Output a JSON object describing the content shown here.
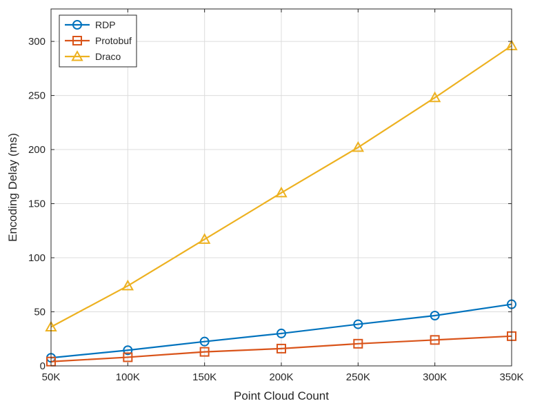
{
  "chart_data": {
    "type": "line",
    "title": "",
    "xlabel": "Point Cloud Count",
    "ylabel": "Encoding Delay (ms)",
    "x": [
      50,
      100,
      150,
      200,
      250,
      300,
      350
    ],
    "x_tick_labels": [
      "50K",
      "100K",
      "150K",
      "200K",
      "250K",
      "300K",
      "350K"
    ],
    "xlim": [
      50,
      350
    ],
    "ylim": [
      0,
      330
    ],
    "y_ticks": [
      0,
      50,
      100,
      150,
      200,
      250,
      300
    ],
    "y_tick_labels": [
      "0",
      "50",
      "100",
      "150",
      "200",
      "250",
      "300"
    ],
    "grid": true,
    "legend_position": "top-left",
    "series": [
      {
        "name": "RDP",
        "color": "#0072BD",
        "marker": "circle",
        "values": [
          7.5,
          14.5,
          22.5,
          30,
          38.5,
          46.5,
          57
        ]
      },
      {
        "name": "Protobuf",
        "color": "#D95319",
        "marker": "square",
        "values": [
          4,
          8,
          13,
          16,
          20.5,
          24,
          27.5
        ]
      },
      {
        "name": "Draco",
        "color": "#EDB120",
        "marker": "triangle",
        "values": [
          36,
          74,
          117,
          160,
          202,
          248,
          296
        ]
      }
    ]
  }
}
